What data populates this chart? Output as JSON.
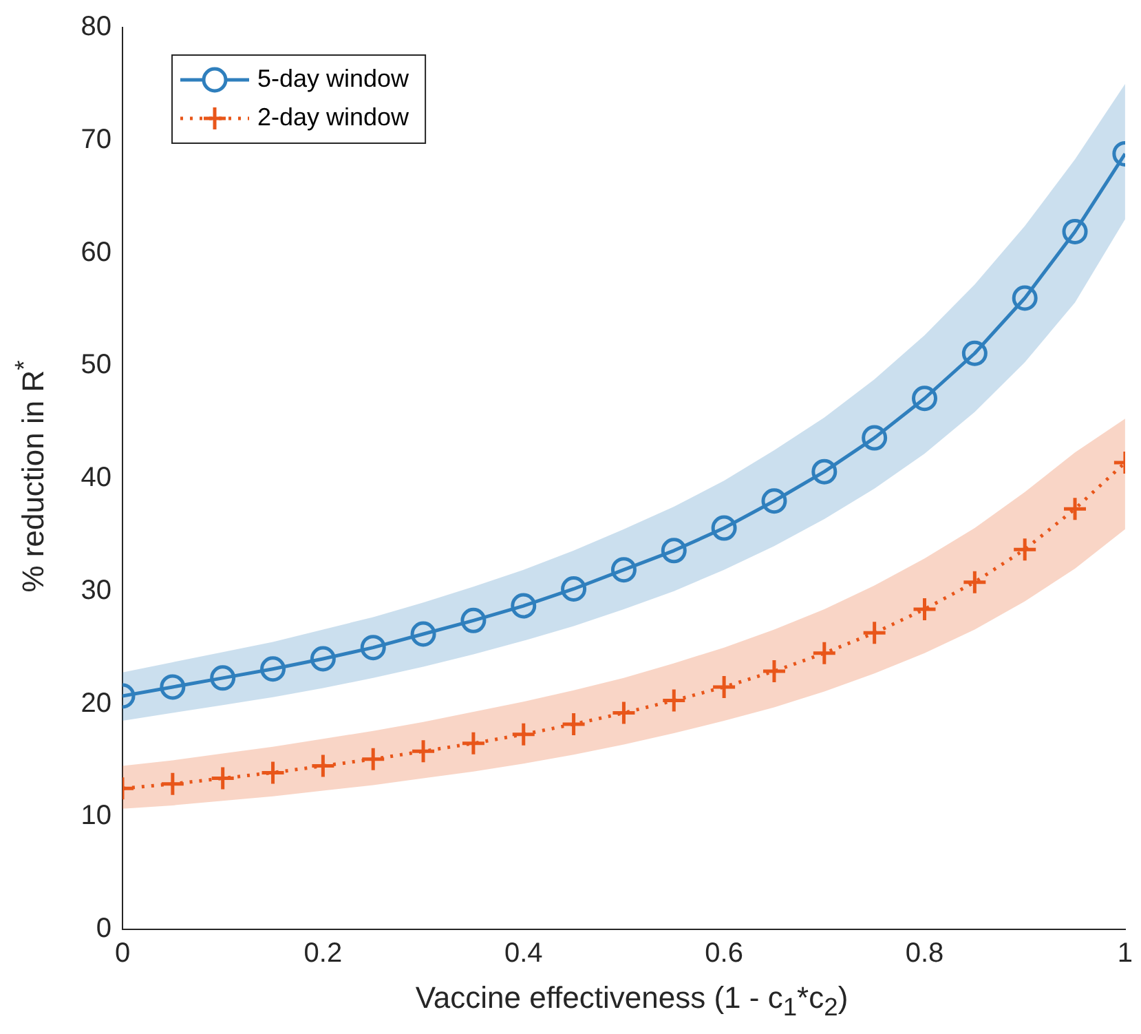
{
  "chart_data": {
    "type": "line",
    "xlabel": "Vaccine effectiveness (1 - c$_{1}$*c$_{2}$)",
    "ylabel": "% reduction in R$^{*}$",
    "x": [
      0,
      0.05,
      0.1,
      0.15,
      0.2,
      0.25,
      0.3,
      0.35,
      0.4,
      0.45,
      0.5,
      0.55,
      0.6,
      0.65,
      0.7,
      0.75,
      0.8,
      0.85,
      0.9,
      0.95,
      1
    ],
    "series": [
      {
        "name": "5-day window",
        "color": "#2f7fbd",
        "marker": "circle",
        "line_style": "solid",
        "values": [
          20.7,
          21.5,
          22.3,
          23.1,
          24.0,
          25.0,
          26.2,
          27.4,
          28.7,
          30.2,
          31.9,
          33.6,
          35.6,
          38.0,
          40.6,
          43.6,
          47.1,
          51.1,
          56.0,
          61.9,
          68.8
        ],
        "lower": [
          18.5,
          19.2,
          19.9,
          20.6,
          21.4,
          22.3,
          23.3,
          24.4,
          25.6,
          26.9,
          28.4,
          30.0,
          31.9,
          34.0,
          36.4,
          39.1,
          42.2,
          45.9,
          50.3,
          55.6,
          63.0
        ],
        "upper": [
          22.8,
          23.7,
          24.6,
          25.5,
          26.6,
          27.7,
          29.0,
          30.4,
          31.9,
          33.6,
          35.5,
          37.5,
          39.8,
          42.5,
          45.4,
          48.8,
          52.7,
          57.2,
          62.4,
          68.3,
          75.0
        ]
      },
      {
        "name": "2-day window",
        "color": "#e8561a",
        "marker": "cross",
        "line_style": "dotted",
        "values": [
          12.5,
          12.9,
          13.4,
          13.9,
          14.5,
          15.1,
          15.8,
          16.5,
          17.3,
          18.2,
          19.2,
          20.3,
          21.5,
          22.9,
          24.5,
          26.3,
          28.4,
          30.8,
          33.7,
          37.3,
          41.4
        ],
        "lower": [
          10.7,
          11.0,
          11.4,
          11.8,
          12.3,
          12.8,
          13.4,
          14.0,
          14.7,
          15.5,
          16.4,
          17.4,
          18.5,
          19.7,
          21.1,
          22.7,
          24.5,
          26.6,
          29.1,
          32.0,
          35.5
        ],
        "upper": [
          14.5,
          15.0,
          15.6,
          16.2,
          16.9,
          17.6,
          18.4,
          19.3,
          20.2,
          21.2,
          22.3,
          23.6,
          25.0,
          26.6,
          28.4,
          30.5,
          32.9,
          35.6,
          38.8,
          42.3,
          45.3
        ]
      }
    ],
    "xlim": [
      0,
      1
    ],
    "xticks": [
      0,
      0.2,
      0.4,
      0.6,
      0.8,
      1
    ],
    "ylim": [
      0,
      80
    ],
    "yticks": [
      0,
      10,
      20,
      30,
      40,
      50,
      60,
      70,
      80
    ],
    "grid": false,
    "legend": "top left"
  }
}
